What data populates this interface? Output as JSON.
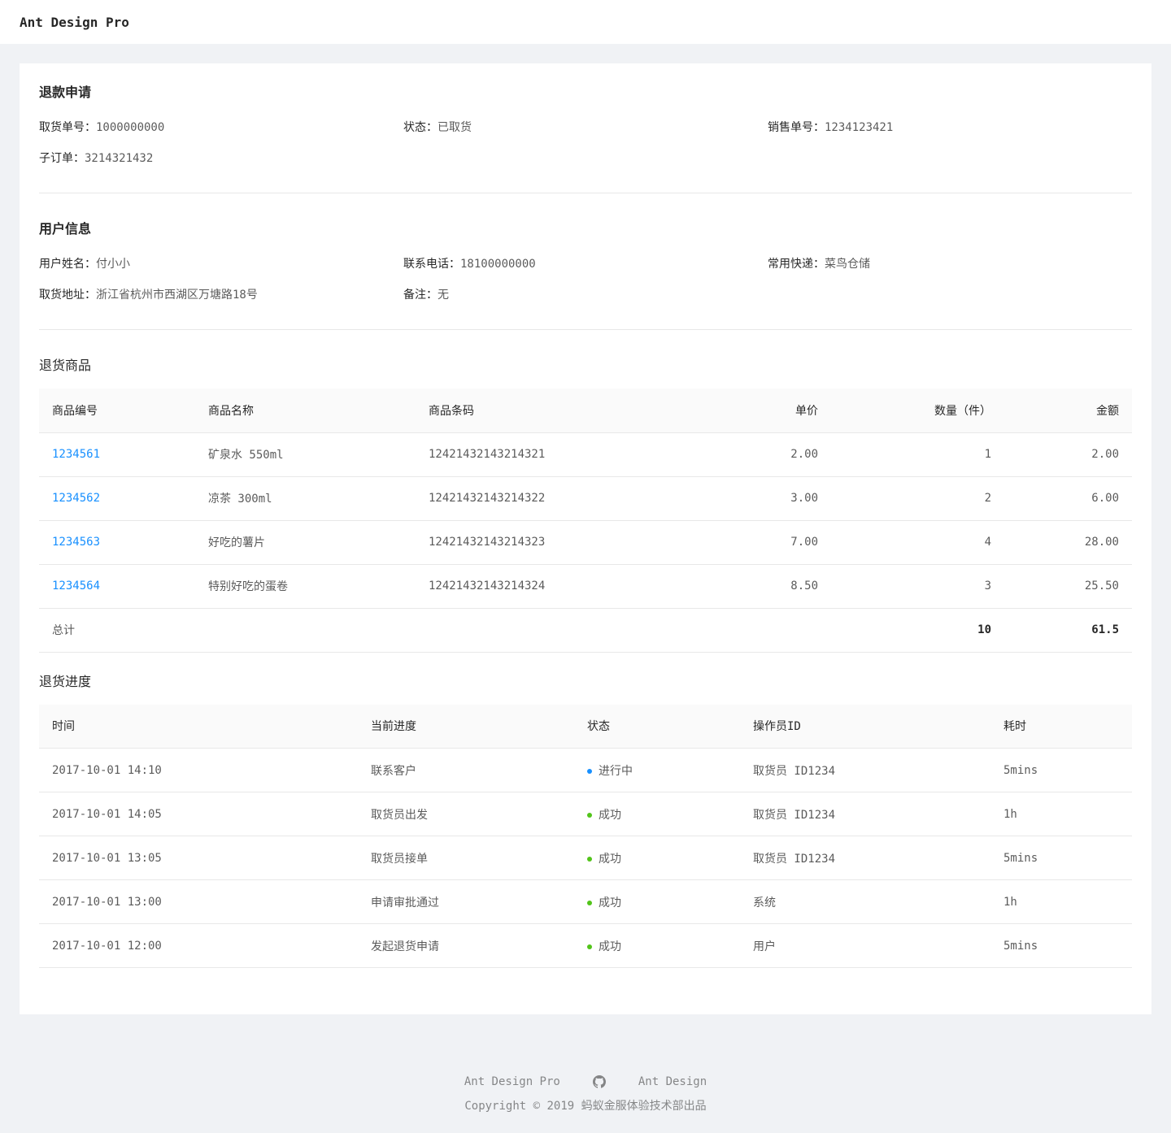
{
  "header": {
    "title": "Ant Design Pro"
  },
  "refund": {
    "title": "退款申请",
    "items": [
      {
        "label": "取货单号：",
        "value": "1000000000"
      },
      {
        "label": "状态：",
        "value": "已取货"
      },
      {
        "label": "销售单号：",
        "value": "1234123421"
      },
      {
        "label": "子订单：",
        "value": "3214321432"
      }
    ]
  },
  "user": {
    "title": "用户信息",
    "items": [
      {
        "label": "用户姓名：",
        "value": "付小小"
      },
      {
        "label": "联系电话：",
        "value": "18100000000"
      },
      {
        "label": "常用快递：",
        "value": "菜鸟仓储"
      },
      {
        "label": "取货地址：",
        "value": "浙江省杭州市西湖区万塘路18号"
      },
      {
        "label": "备注：",
        "value": "无"
      }
    ]
  },
  "goods": {
    "title": "退货商品",
    "columns": [
      "商品编号",
      "商品名称",
      "商品条码",
      "单价",
      "数量（件）",
      "金额"
    ],
    "rows": [
      [
        "1234561",
        "矿泉水 550ml",
        "12421432143214321",
        "2.00",
        "1",
        "2.00"
      ],
      [
        "1234562",
        "凉茶 300ml",
        "12421432143214322",
        "3.00",
        "2",
        "6.00"
      ],
      [
        "1234563",
        "好吃的薯片",
        "12421432143214323",
        "7.00",
        "4",
        "28.00"
      ],
      [
        "1234564",
        "特别好吃的蛋卷",
        "12421432143214324",
        "8.50",
        "3",
        "25.50"
      ]
    ],
    "total": {
      "label": "总计",
      "quantity": "10",
      "amount": "61.5"
    }
  },
  "progress": {
    "title": "退货进度",
    "columns": [
      "时间",
      "当前进度",
      "状态",
      "操作员ID",
      "耗时"
    ],
    "status_colors": {
      "processing": "#1890ff",
      "success": "#52c41a"
    },
    "rows": [
      [
        "2017-10-01 14:10",
        "联系客户",
        "进行中",
        "取货员 ID1234",
        "5mins"
      ],
      [
        "2017-10-01 14:05",
        "取货员出发",
        "成功",
        "取货员 ID1234",
        "1h"
      ],
      [
        "2017-10-01 13:05",
        "取货员接单",
        "成功",
        "取货员 ID1234",
        "5mins"
      ],
      [
        "2017-10-01 13:00",
        "申请审批通过",
        "成功",
        "系统",
        "1h"
      ],
      [
        "2017-10-01 12:00",
        "发起退货申请",
        "成功",
        "用户",
        "5mins"
      ]
    ],
    "row_status": [
      "processing",
      "success",
      "success",
      "success",
      "success"
    ]
  },
  "footer": {
    "links": [
      "Ant Design Pro",
      "Ant Design"
    ],
    "github_icon": "github-icon",
    "copyright": "Copyright © 2019 蚂蚁金服体验技术部出品"
  }
}
